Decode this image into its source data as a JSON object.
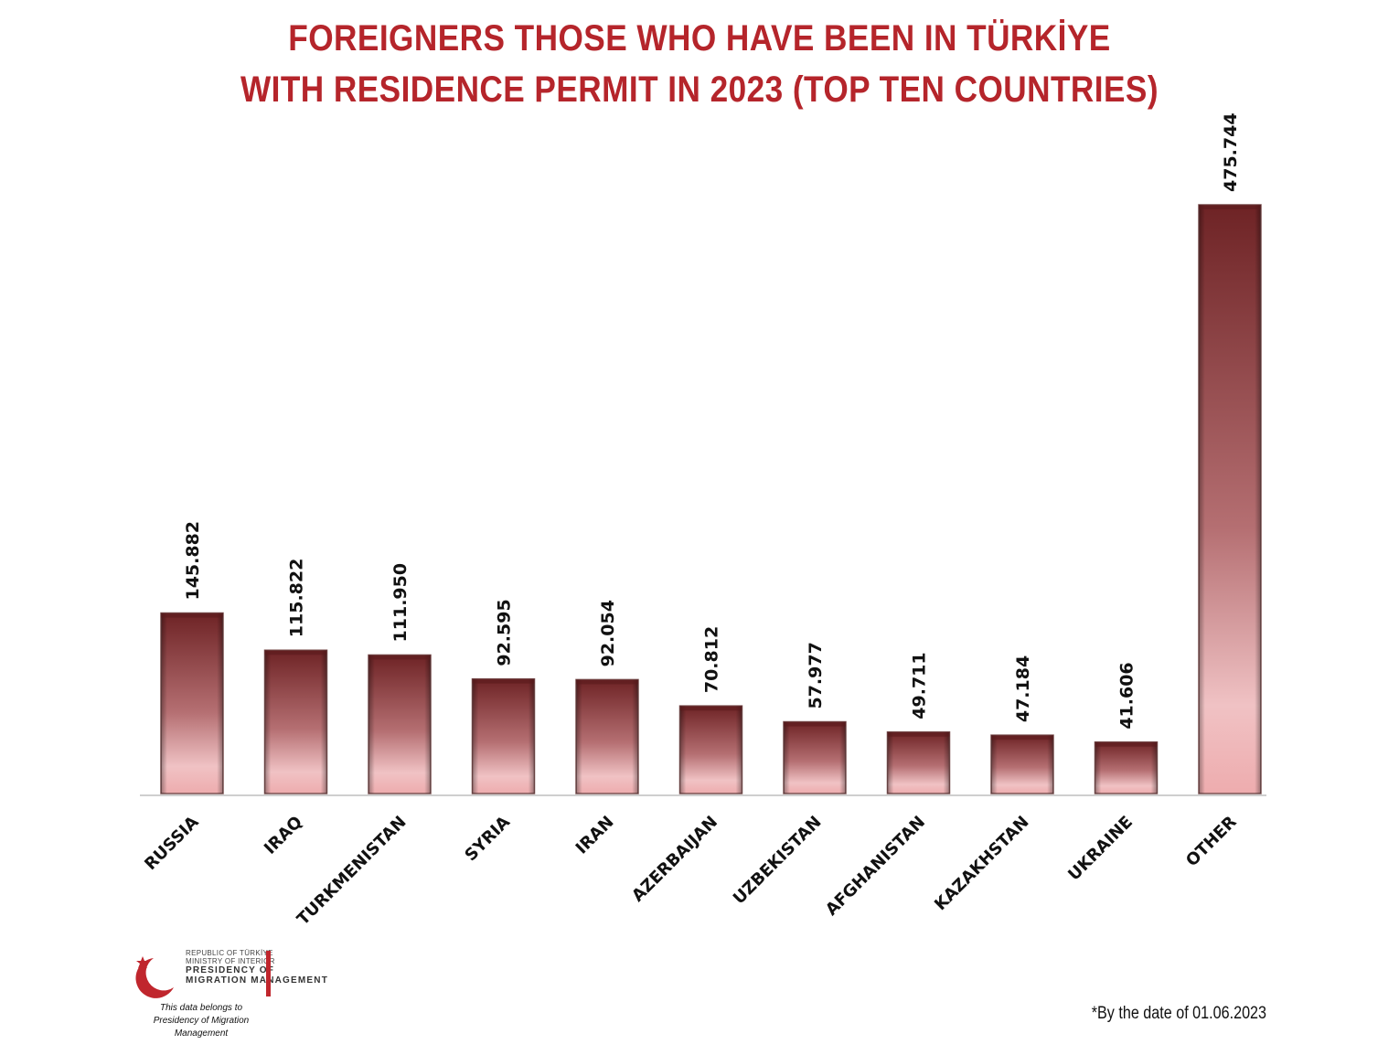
{
  "title": {
    "line1": "FOREIGNERS THOSE WHO HAVE BEEN IN TÜRKİYE",
    "line2": "WITH RESIDENCE PERMIT IN 2023 (TOP TEN COUNTRIES)"
  },
  "footnote": "*By the date of 01.06.2023",
  "logo": {
    "line1": "REPUBLIC OF TÜRKİYE",
    "line2": "MINISTRY OF INTERIOR",
    "line3": "PRESIDENCY OF",
    "line4": "MIGRATION MANAGEMENT",
    "caption1": "This data belongs to",
    "caption2": "Presidency of Migration Management"
  },
  "colors": {
    "title": "#b5252b",
    "bar_top": "#6e2325",
    "bar_bottom": "#f2b9bb",
    "logo_red": "#c0262d"
  },
  "chart_data": {
    "type": "bar",
    "title": "FOREIGNERS THOSE WHO HAVE BEEN IN TÜRKİYE WITH RESIDENCE PERMIT IN 2023 (TOP TEN COUNTRIES)",
    "categories": [
      "RUSSIA",
      "IRAQ",
      "TURKMENISTAN",
      "SYRIA",
      "IRAN",
      "AZERBAIJAN",
      "UZBEKISTAN",
      "AFGHANISTAN",
      "KAZAKHSTAN",
      "UKRAINE",
      "OTHER"
    ],
    "values": [
      145882,
      115822,
      111950,
      92595,
      92054,
      70812,
      57977,
      49711,
      47184,
      41606,
      475744
    ],
    "labels": [
      "145.882",
      "115.822",
      "111.950",
      "92.595",
      "92.054",
      "70.812",
      "57.977",
      "49.711",
      "47.184",
      "41.606",
      "475.744"
    ],
    "xlabel": "",
    "ylabel": "",
    "ylim": [
      0,
      475744
    ],
    "grid": false,
    "legend": "none"
  }
}
